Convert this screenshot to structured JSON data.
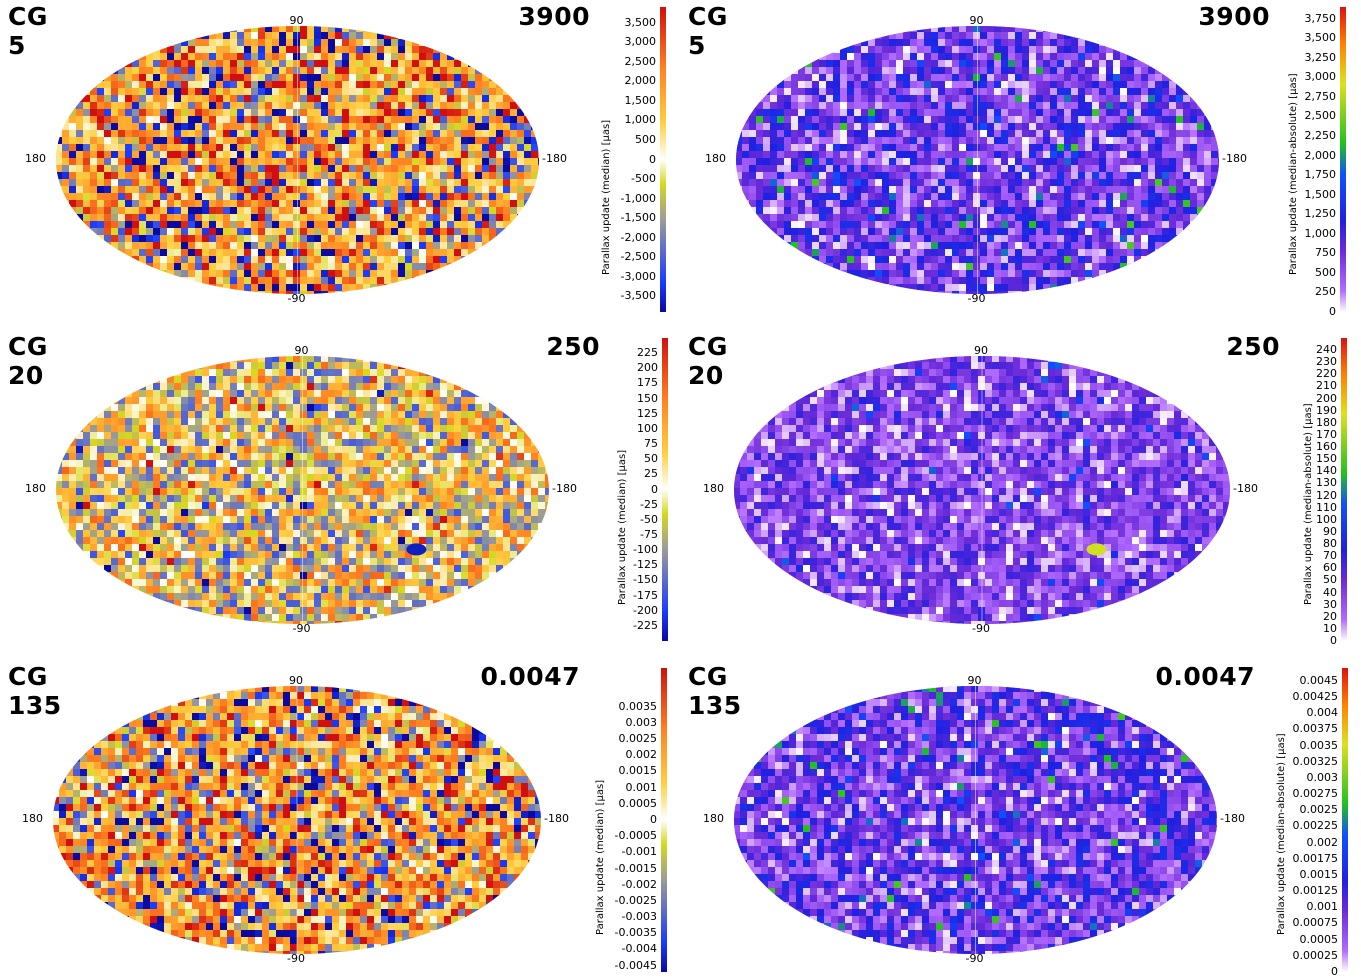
{
  "chart_data": [
    {
      "type": "heatmap",
      "projection": "hammer-aitoff all-sky",
      "title": "CG 5",
      "subtitle": "3900",
      "colormap": "blue-grey-yellow-white-orange-red (diverging)",
      "colorbar_label": "Parallax update (median) [µas]",
      "colorbar_ticks": [
        "3,500",
        "3,000",
        "2,500",
        "2,000",
        "1,500",
        "1,000",
        "500",
        "0",
        "-500",
        "-1,000",
        "-1,500",
        "-2,000",
        "-2,500",
        "-3,000",
        "-3,500"
      ],
      "range": [
        -3900,
        3900
      ],
      "axis_labels": {
        "top": "90",
        "bottom": "-90",
        "left": "180",
        "right": "-180"
      }
    },
    {
      "type": "heatmap",
      "projection": "hammer-aitoff all-sky",
      "title": "CG 5",
      "subtitle": "3900",
      "colormap": "white-violet-blue-green-yellow-red (sequential)",
      "colorbar_label": "Parallax update (median-absolute) [µas]",
      "colorbar_ticks": [
        "3,750",
        "3,500",
        "3,250",
        "3,000",
        "2,750",
        "2,500",
        "2,250",
        "2,000",
        "1,750",
        "1,500",
        "1,250",
        "1,000",
        "750",
        "500",
        "250",
        "0"
      ],
      "range": [
        0,
        3900
      ],
      "axis_labels": {
        "top": "90",
        "bottom": "-90",
        "left": "180",
        "right": "-180"
      }
    },
    {
      "type": "heatmap",
      "projection": "hammer-aitoff all-sky",
      "title": "CG 20",
      "subtitle": "250",
      "colormap": "blue-grey-yellow-white-orange-red (diverging)",
      "colorbar_label": "Parallax update (median) [µas]",
      "colorbar_ticks": [
        "225",
        "200",
        "175",
        "150",
        "125",
        "100",
        "75",
        "50",
        "25",
        "0",
        "-25",
        "-50",
        "-75",
        "-100",
        "-125",
        "-150",
        "-175",
        "-200",
        "-225"
      ],
      "range": [
        -250,
        250
      ],
      "axis_labels": {
        "top": "90",
        "bottom": "-90",
        "left": "180",
        "right": "-180"
      }
    },
    {
      "type": "heatmap",
      "projection": "hammer-aitoff all-sky",
      "title": "CG 20",
      "subtitle": "250",
      "colormap": "white-violet-blue-green-yellow-red (sequential)",
      "colorbar_label": "Parallax update (median-absolute) [µas]",
      "colorbar_ticks": [
        "240",
        "230",
        "220",
        "210",
        "200",
        "190",
        "180",
        "170",
        "160",
        "150",
        "140",
        "130",
        "120",
        "110",
        "100",
        "90",
        "80",
        "70",
        "60",
        "50",
        "40",
        "30",
        "20",
        "10",
        "0"
      ],
      "range": [
        0,
        250
      ],
      "axis_labels": {
        "top": "90",
        "bottom": "-90",
        "left": "180",
        "right": "-180"
      }
    },
    {
      "type": "heatmap",
      "projection": "hammer-aitoff all-sky",
      "title": "CG 135",
      "subtitle": "0.0047",
      "colormap": "blue-grey-yellow-white-orange-red (diverging)",
      "colorbar_label": "Parallax update (median) [µas]",
      "colorbar_ticks": [
        "0.0035",
        "0.003",
        "0.0025",
        "0.002",
        "0.0015",
        "0.001",
        "0.0005",
        "0",
        "-0.0005",
        "-0.001",
        "-0.0015",
        "-0.002",
        "-0.0025",
        "-0.003",
        "-0.0035",
        "-0.004",
        "-0.0045"
      ],
      "range": [
        -0.0047,
        0.0047
      ],
      "axis_labels": {
        "top": "90",
        "bottom": "-90",
        "left": "180",
        "right": "-180"
      }
    },
    {
      "type": "heatmap",
      "projection": "hammer-aitoff all-sky",
      "title": "CG 135",
      "subtitle": "0.0047",
      "colormap": "white-violet-blue-green-yellow-red (sequential)",
      "colorbar_label": "Parallax update (median-absolute) [µas]",
      "colorbar_ticks": [
        "0.0045",
        "0.00425",
        "0.004",
        "0.00375",
        "0.0035",
        "0.00325",
        "0.003",
        "0.00275",
        "0.0025",
        "0.00225",
        "0.002",
        "0.00175",
        "0.0015",
        "0.00125",
        "0.001",
        "0.00075",
        "0.0005",
        "0.00025",
        "0"
      ],
      "range": [
        0,
        0.0047
      ],
      "axis_labels": {
        "top": "90",
        "bottom": "-90",
        "left": "180",
        "right": "-180"
      }
    }
  ]
}
